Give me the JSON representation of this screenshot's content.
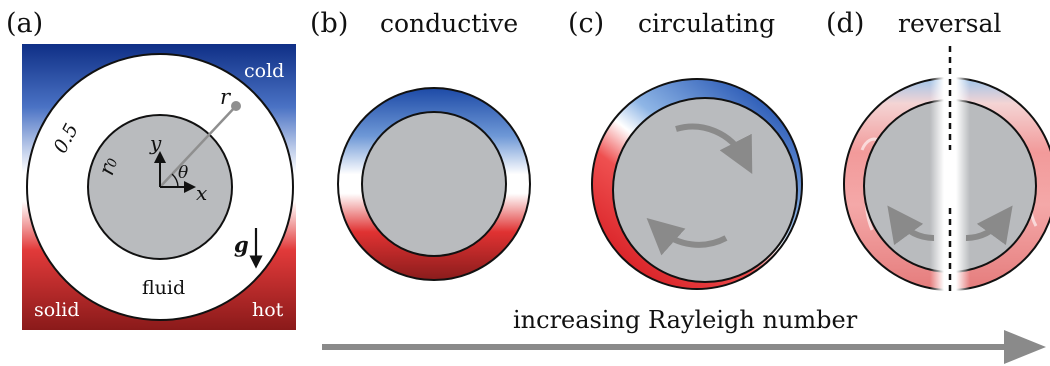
{
  "panels": {
    "a": {
      "label": "(a)"
    },
    "b": {
      "label": "(b)",
      "title": "conductive"
    },
    "c": {
      "label": "(c)",
      "title": "circulating"
    },
    "d": {
      "label": "(d)",
      "title": "reversal"
    }
  },
  "schematic": {
    "corner_top_right": "cold",
    "corner_bottom_left": "solid",
    "corner_bottom_right": "hot",
    "annulus_label": "fluid",
    "outer_radius_label": "0.5",
    "inner_radius_label": "r",
    "inner_radius_sub": "0",
    "point_label": "r",
    "axis_x": "x",
    "axis_y": "y",
    "angle": "θ",
    "gravity": "g"
  },
  "bottom": {
    "caption": "increasing Rayleigh number"
  },
  "colors": {
    "cold": "#1a47a8",
    "hot": "#c8141c",
    "hot_dark": "#7a1a1a",
    "solid_gray": "#b9bbbe",
    "arrow_gray": "#8a8a8a"
  }
}
